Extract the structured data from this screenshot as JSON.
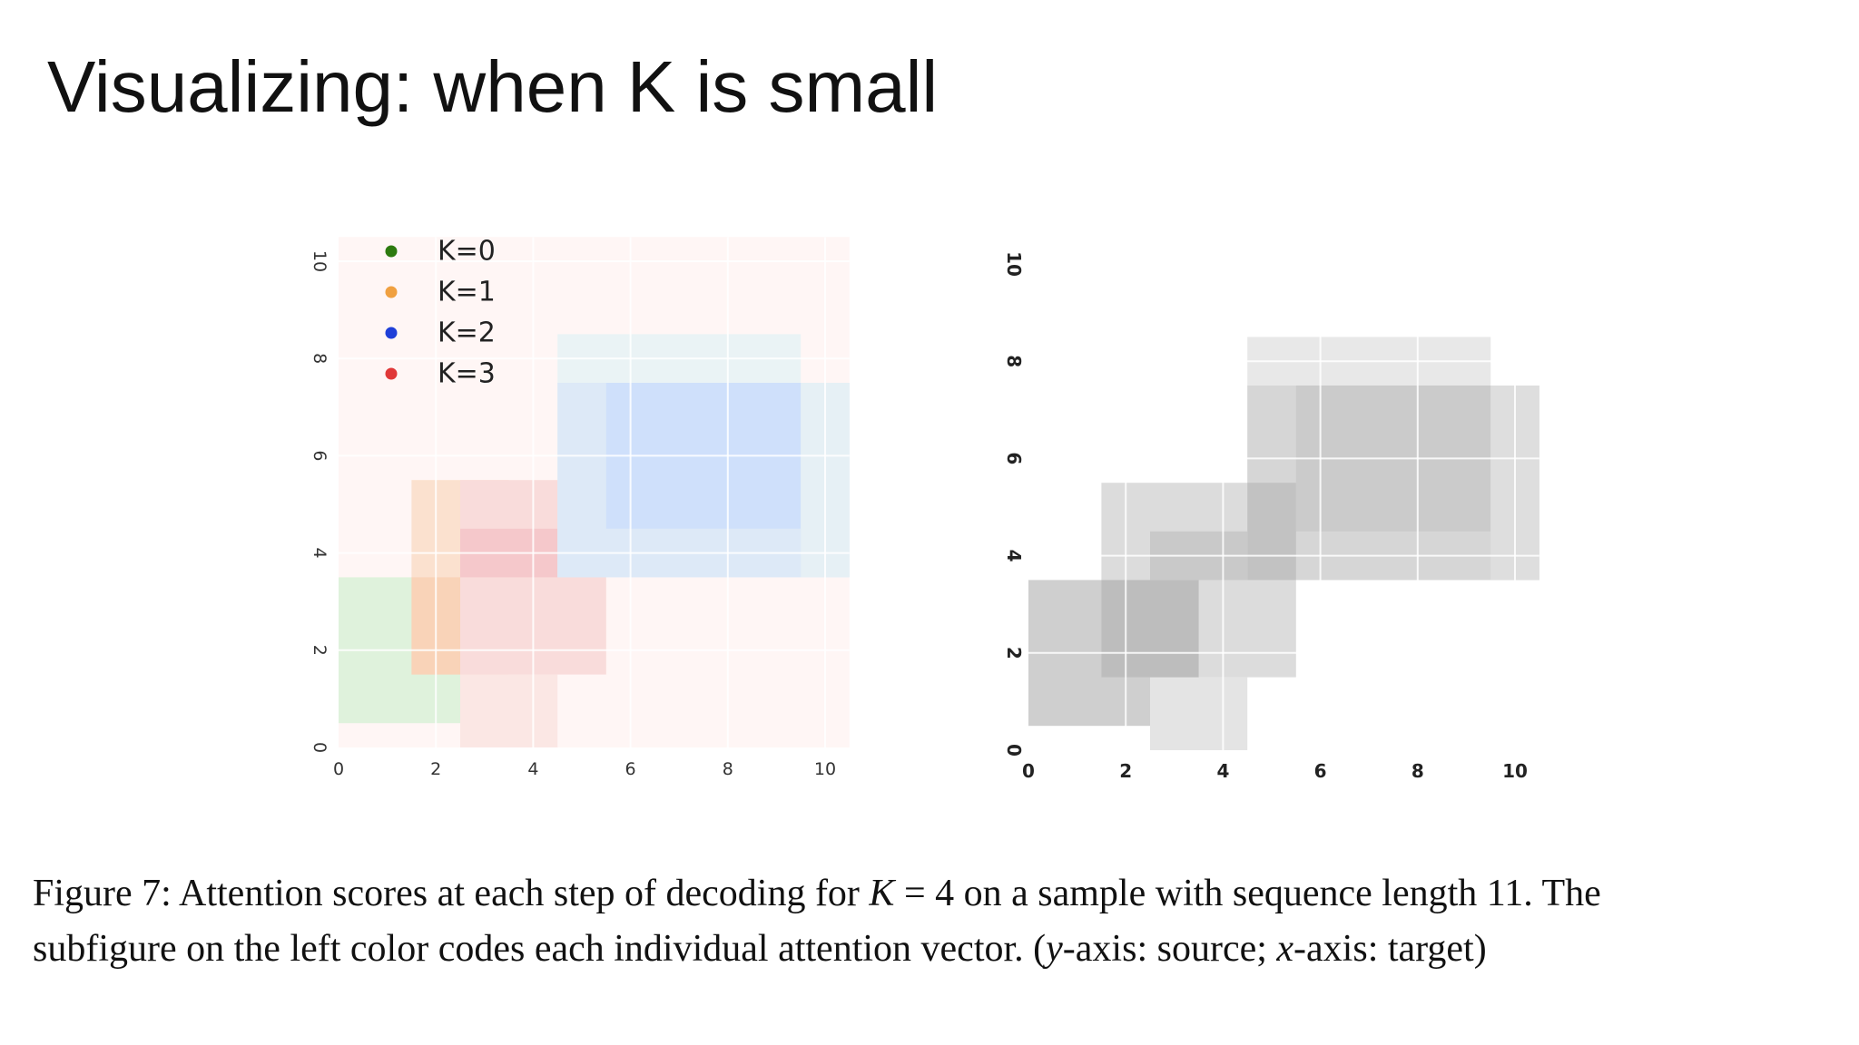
{
  "slide": {
    "title": "Visualizing: when K is small"
  },
  "chart_data": [
    {
      "type": "heatmap",
      "name": "colored",
      "xlabel": "",
      "ylabel": "",
      "xlim": [
        0,
        10.5
      ],
      "ylim": [
        0,
        10.5
      ],
      "xticks": [
        "0",
        "2",
        "4",
        "6",
        "8",
        "10"
      ],
      "yticks": [
        "0",
        "2",
        "4",
        "6",
        "8",
        "10"
      ],
      "legend": {
        "placement": "top-left",
        "entries": [
          {
            "label": "K=0",
            "color": "#2d7a0f"
          },
          {
            "label": "K=1",
            "color": "#f0a040"
          },
          {
            "label": "K=2",
            "color": "#1f3fd8"
          },
          {
            "label": "K=3",
            "color": "#e03838"
          }
        ]
      },
      "background_color": "#fff6f5",
      "blocks": [
        {
          "k": 0,
          "x0": 0,
          "x1": 2.5,
          "y0": 0.5,
          "y1": 3.5,
          "color": "#dff2dc"
        },
        {
          "k": 1,
          "x0": 1.5,
          "x1": 3.5,
          "y0": 1.5,
          "y1": 5.5,
          "color": "#fbe1cf"
        },
        {
          "k": 1,
          "x0": 2.5,
          "x1": 3.5,
          "y0": 0,
          "y1": 1.5,
          "color": "#fde8d4"
        },
        {
          "k": 1,
          "x0": 1.5,
          "x1": 3.5,
          "y0": 1.5,
          "y1": 3.5,
          "color": "#f9d3b8"
        },
        {
          "k": 3,
          "x0": 2.5,
          "x1": 5.5,
          "y0": 1.5,
          "y1": 5.5,
          "color": "#f9dcdb"
        },
        {
          "k": 3,
          "x0": 2.5,
          "x1": 4.5,
          "y0": 0,
          "y1": 1.5,
          "color": "#fbe7e4"
        },
        {
          "k": 3,
          "x0": 2.5,
          "x1": 5.5,
          "y0": 3.5,
          "y1": 4.5,
          "color": "#f5c8cb"
        },
        {
          "k": 3,
          "x0": 4.5,
          "x1": 5.5,
          "y0": 3.5,
          "y1": 5.5,
          "color": "#eec1cd"
        },
        {
          "k": 2,
          "x0": 4.5,
          "x1": 9.5,
          "y0": 3.5,
          "y1": 8.5,
          "color": "#eaf3f5"
        },
        {
          "k": 2,
          "x0": 4.5,
          "x1": 10.5,
          "y0": 3.5,
          "y1": 7.5,
          "color": "#dde9f7"
        },
        {
          "k": 2,
          "x0": 5.5,
          "x1": 9.5,
          "y0": 4.5,
          "y1": 7.5,
          "color": "#cfe0fb"
        },
        {
          "k": 2,
          "x0": 9.5,
          "x1": 10.5,
          "y0": 3.5,
          "y1": 7.5,
          "color": "#e6f0f5"
        }
      ]
    },
    {
      "type": "heatmap",
      "name": "grayscale",
      "xlabel": "",
      "ylabel": "",
      "xlim": [
        0,
        10.5
      ],
      "ylim": [
        0,
        10.5
      ],
      "xticks": [
        "0",
        "2",
        "4",
        "6",
        "8",
        "10"
      ],
      "yticks": [
        "0",
        "2",
        "4",
        "6",
        "8",
        "10"
      ],
      "background_color": "#ffffff",
      "blocks": [
        {
          "x0": 0,
          "x1": 3.5,
          "y0": 0.5,
          "y1": 3.5,
          "color": "#cfcfcf"
        },
        {
          "x0": 1.5,
          "x1": 5.5,
          "y0": 1.5,
          "y1": 5.5,
          "color": "#dcdcdc"
        },
        {
          "x0": 2.5,
          "x1": 4.5,
          "y0": 0,
          "y1": 1.5,
          "color": "#e4e4e4"
        },
        {
          "x0": 1.5,
          "x1": 3.5,
          "y0": 1.5,
          "y1": 3.5,
          "color": "#bdbdbd"
        },
        {
          "x0": 2.5,
          "x1": 4.5,
          "y0": 3.5,
          "y1": 4.5,
          "color": "#c9c9c9"
        },
        {
          "x0": 4.5,
          "x1": 9.5,
          "y0": 3.5,
          "y1": 8.5,
          "color": "#e8e8e8"
        },
        {
          "x0": 4.5,
          "x1": 10.5,
          "y0": 3.5,
          "y1": 7.5,
          "color": "#d6d6d6"
        },
        {
          "x0": 5.5,
          "x1": 9.5,
          "y0": 4.5,
          "y1": 7.5,
          "color": "#cbcbcb"
        },
        {
          "x0": 9.5,
          "x1": 10.5,
          "y0": 3.5,
          "y1": 7.5,
          "color": "#dedede"
        },
        {
          "x0": 4.5,
          "x1": 5.5,
          "y0": 3.5,
          "y1": 5.5,
          "color": "#c2c2c2"
        }
      ]
    }
  ],
  "caption": {
    "line1_prefix": "Figure 7:  Attention scores at each step of decoding for ",
    "k_symbol": "K",
    "eq": " = 4 on a sample with sequence length 11.  The",
    "line2_prefix": "subfigure on the left color codes each individual attention vector. (",
    "y_sym": "y",
    "line2_mid": "-axis: source; ",
    "x_sym": "x",
    "line2_end": "-axis: target)"
  }
}
